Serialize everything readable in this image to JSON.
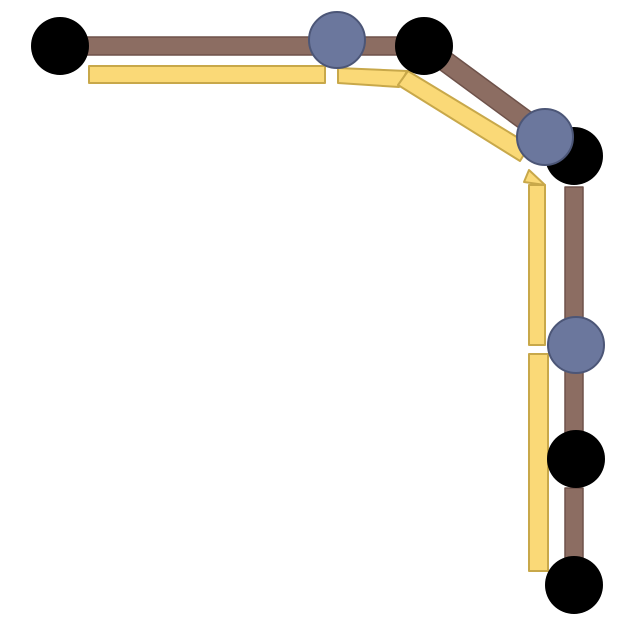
{
  "colors": {
    "background": "#ffffff",
    "original_segment_fill": "#8c6d62",
    "original_segment_stroke": "#6e524a",
    "offset_segment_fill": "#fad977",
    "offset_segment_stroke": "#c8a84a",
    "black_node_fill": "#000000",
    "blue_node_fill": "#6b779d",
    "blue_node_stroke": "#4c5677"
  }
}
